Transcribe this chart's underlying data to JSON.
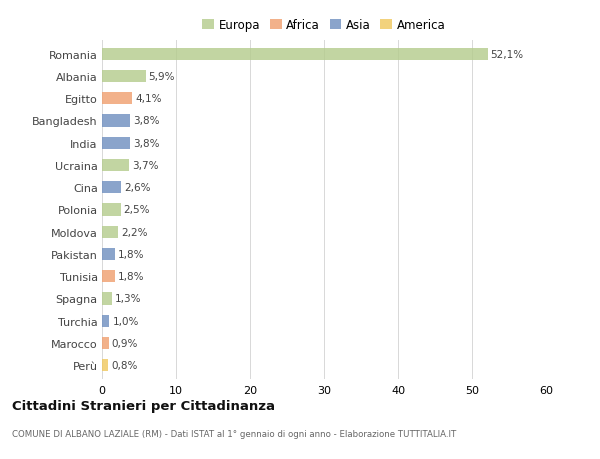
{
  "countries": [
    "Romania",
    "Albania",
    "Egitto",
    "Bangladesh",
    "India",
    "Ucraina",
    "Cina",
    "Polonia",
    "Moldova",
    "Pakistan",
    "Tunisia",
    "Spagna",
    "Turchia",
    "Marocco",
    "Perù"
  ],
  "values": [
    52.1,
    5.9,
    4.1,
    3.8,
    3.8,
    3.7,
    2.6,
    2.5,
    2.2,
    1.8,
    1.8,
    1.3,
    1.0,
    0.9,
    0.8
  ],
  "labels": [
    "52,1%",
    "5,9%",
    "4,1%",
    "3,8%",
    "3,8%",
    "3,7%",
    "2,6%",
    "2,5%",
    "2,2%",
    "1,8%",
    "1,8%",
    "1,3%",
    "1,0%",
    "0,9%",
    "0,8%"
  ],
  "continents": [
    "Europa",
    "Europa",
    "Africa",
    "Asia",
    "Asia",
    "Europa",
    "Asia",
    "Europa",
    "Europa",
    "Asia",
    "Africa",
    "Europa",
    "Asia",
    "Africa",
    "America"
  ],
  "continent_colors": {
    "Europa": "#b5cc8e",
    "Africa": "#f0a070",
    "Asia": "#7090c0",
    "America": "#f0c860"
  },
  "legend_order": [
    "Europa",
    "Africa",
    "Asia",
    "America"
  ],
  "xlim": [
    0,
    60
  ],
  "xticks": [
    0,
    10,
    20,
    30,
    40,
    50,
    60
  ],
  "title": "Cittadini Stranieri per Cittadinanza",
  "subtitle": "COMUNE DI ALBANO LAZIALE (RM) - Dati ISTAT al 1° gennaio di ogni anno - Elaborazione TUTTITALIA.IT",
  "bg_color": "#ffffff",
  "grid_color": "#d8d8d8",
  "bar_height": 0.55,
  "bar_alpha": 0.82
}
